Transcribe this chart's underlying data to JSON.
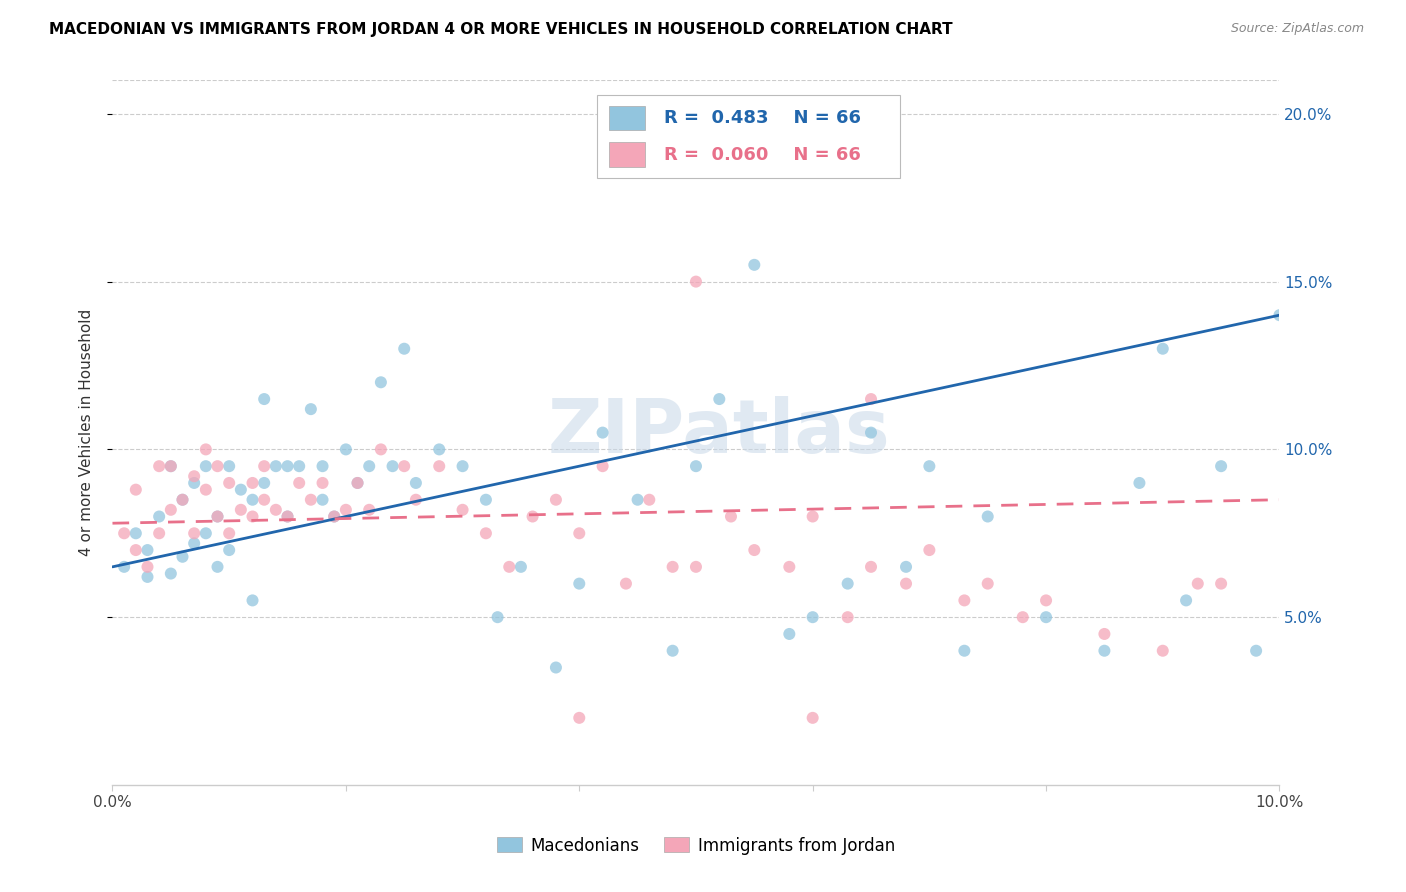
{
  "title": "MACEDONIAN VS IMMIGRANTS FROM JORDAN 4 OR MORE VEHICLES IN HOUSEHOLD CORRELATION CHART",
  "source": "Source: ZipAtlas.com",
  "ylabel": "4 or more Vehicles in Household",
  "x_min": 0.0,
  "x_max": 0.1,
  "y_min": 0.0,
  "y_max": 0.21,
  "y_ticks": [
    0.05,
    0.1,
    0.15,
    0.2
  ],
  "y_tick_labels": [
    "5.0%",
    "10.0%",
    "15.0%",
    "20.0%"
  ],
  "x_ticks": [
    0.0,
    0.1
  ],
  "x_tick_labels": [
    "0.0%",
    "10.0%"
  ],
  "legend_label1": "Macedonians",
  "legend_label2": "Immigrants from Jordan",
  "r1": 0.483,
  "r2": 0.06,
  "n1": 66,
  "n2": 66,
  "color_blue": "#92c5de",
  "color_pink": "#f4a6b8",
  "line_color_blue": "#2166ac",
  "line_color_pink": "#e8708a",
  "watermark": "ZIPatlas",
  "mac_x": [
    0.001,
    0.002,
    0.003,
    0.003,
    0.004,
    0.005,
    0.005,
    0.006,
    0.006,
    0.007,
    0.007,
    0.008,
    0.008,
    0.009,
    0.009,
    0.01,
    0.01,
    0.011,
    0.012,
    0.012,
    0.013,
    0.013,
    0.014,
    0.015,
    0.015,
    0.016,
    0.017,
    0.018,
    0.018,
    0.019,
    0.02,
    0.021,
    0.022,
    0.023,
    0.024,
    0.025,
    0.026,
    0.028,
    0.03,
    0.032,
    0.033,
    0.035,
    0.038,
    0.04,
    0.042,
    0.045,
    0.048,
    0.05,
    0.052,
    0.055,
    0.058,
    0.06,
    0.063,
    0.065,
    0.068,
    0.07,
    0.073,
    0.075,
    0.08,
    0.085,
    0.088,
    0.09,
    0.092,
    0.095,
    0.098,
    0.1
  ],
  "mac_y": [
    0.065,
    0.075,
    0.062,
    0.07,
    0.08,
    0.063,
    0.095,
    0.068,
    0.085,
    0.072,
    0.09,
    0.075,
    0.095,
    0.065,
    0.08,
    0.07,
    0.095,
    0.088,
    0.055,
    0.085,
    0.115,
    0.09,
    0.095,
    0.08,
    0.095,
    0.095,
    0.112,
    0.085,
    0.095,
    0.08,
    0.1,
    0.09,
    0.095,
    0.12,
    0.095,
    0.13,
    0.09,
    0.1,
    0.095,
    0.085,
    0.05,
    0.065,
    0.035,
    0.06,
    0.105,
    0.085,
    0.04,
    0.095,
    0.115,
    0.155,
    0.045,
    0.05,
    0.06,
    0.105,
    0.065,
    0.095,
    0.04,
    0.08,
    0.05,
    0.04,
    0.09,
    0.13,
    0.055,
    0.095,
    0.04,
    0.14
  ],
  "jor_x": [
    0.001,
    0.002,
    0.002,
    0.003,
    0.004,
    0.004,
    0.005,
    0.005,
    0.006,
    0.007,
    0.007,
    0.008,
    0.008,
    0.009,
    0.009,
    0.01,
    0.01,
    0.011,
    0.012,
    0.012,
    0.013,
    0.013,
    0.014,
    0.015,
    0.016,
    0.017,
    0.018,
    0.019,
    0.02,
    0.021,
    0.022,
    0.023,
    0.025,
    0.026,
    0.028,
    0.03,
    0.032,
    0.034,
    0.036,
    0.038,
    0.04,
    0.042,
    0.044,
    0.046,
    0.048,
    0.05,
    0.053,
    0.055,
    0.058,
    0.06,
    0.063,
    0.065,
    0.068,
    0.07,
    0.073,
    0.075,
    0.078,
    0.08,
    0.085,
    0.09,
    0.093,
    0.095,
    0.05,
    0.065,
    0.04,
    0.06
  ],
  "jor_y": [
    0.075,
    0.07,
    0.088,
    0.065,
    0.075,
    0.095,
    0.082,
    0.095,
    0.085,
    0.092,
    0.075,
    0.088,
    0.1,
    0.08,
    0.095,
    0.075,
    0.09,
    0.082,
    0.08,
    0.09,
    0.085,
    0.095,
    0.082,
    0.08,
    0.09,
    0.085,
    0.09,
    0.08,
    0.082,
    0.09,
    0.082,
    0.1,
    0.095,
    0.085,
    0.095,
    0.082,
    0.075,
    0.065,
    0.08,
    0.085,
    0.075,
    0.095,
    0.06,
    0.085,
    0.065,
    0.065,
    0.08,
    0.07,
    0.065,
    0.08,
    0.05,
    0.065,
    0.06,
    0.07,
    0.055,
    0.06,
    0.05,
    0.055,
    0.045,
    0.04,
    0.06,
    0.06,
    0.15,
    0.115,
    0.02,
    0.02
  ]
}
